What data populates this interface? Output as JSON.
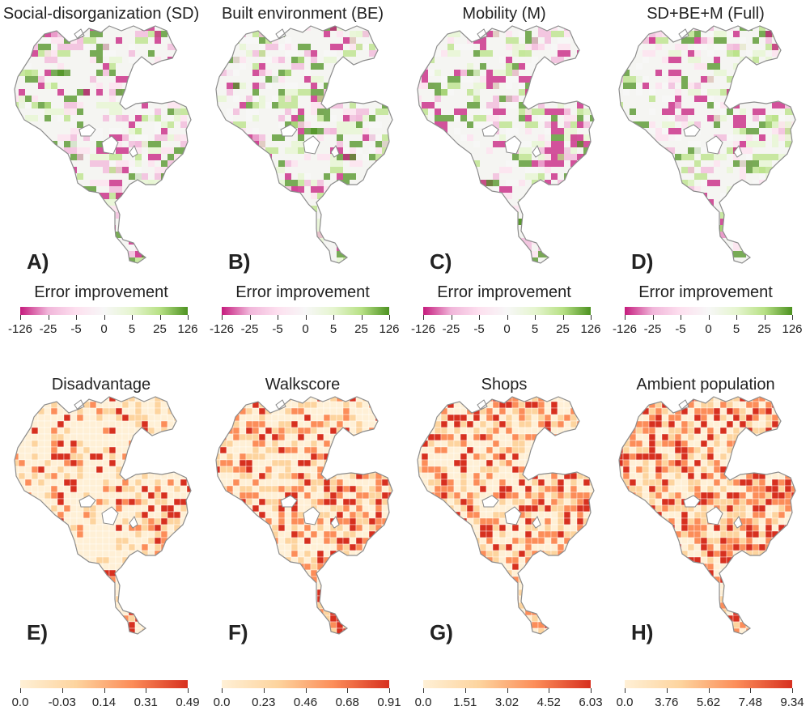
{
  "top_row": {
    "colorbar_title": "Error improvement",
    "ticks": [
      "-126",
      "-25",
      "-5",
      "0",
      "5",
      "25",
      "126"
    ],
    "colors": [
      "#c51b7d",
      "#f1b6da",
      "#fde0ef",
      "#f7f7f7",
      "#e6f5d0",
      "#b8e186",
      "#4d9221"
    ],
    "panels": [
      {
        "title": "Social-disorganization (SD)",
        "letter": "A)"
      },
      {
        "title": "Built environment (BE)",
        "letter": "B)"
      },
      {
        "title": "Mobility (M)",
        "letter": "C)"
      },
      {
        "title": "SD+BE+M (Full)",
        "letter": "D)"
      }
    ]
  },
  "bottom_row": {
    "colors": [
      "#fff0d6",
      "#fdd49e",
      "#fc8d59",
      "#d7301f"
    ],
    "panels": [
      {
        "title": "Disadvantage",
        "letter": "E)",
        "ticks": [
          "0.0",
          "-0.03",
          "0.14",
          "0.31",
          "0.49"
        ]
      },
      {
        "title": "Walkscore",
        "letter": "F)",
        "ticks": [
          "0.0",
          "0.23",
          "0.46",
          "0.68",
          "0.91"
        ]
      },
      {
        "title": "Shops",
        "letter": "G)",
        "ticks": [
          "0.0",
          "1.51",
          "3.02",
          "4.52",
          "6.03"
        ]
      },
      {
        "title": "Ambient population",
        "letter": "H)",
        "ticks": [
          "0.0",
          "3.76",
          "5.62",
          "7.48",
          "9.34"
        ]
      }
    ]
  }
}
